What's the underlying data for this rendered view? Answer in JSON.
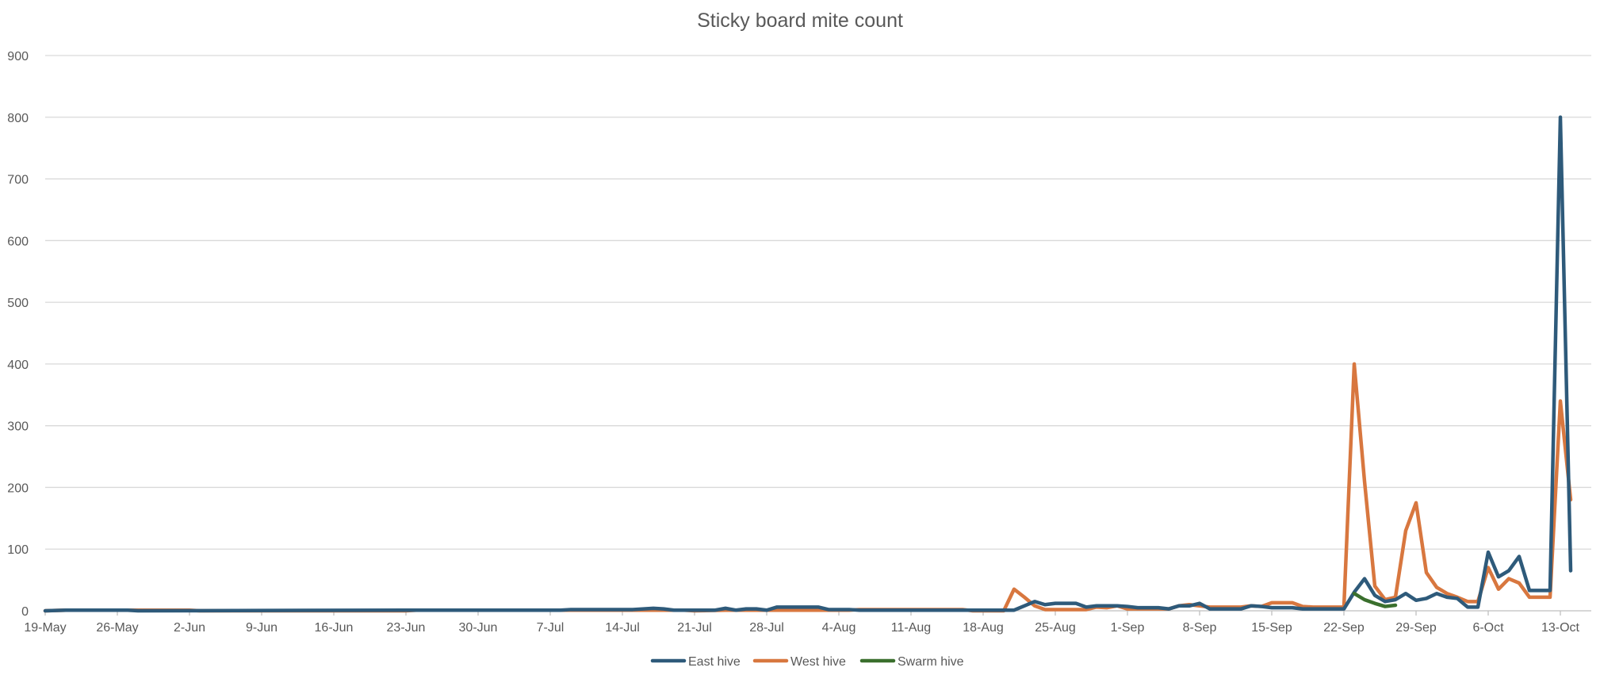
{
  "chart_data": {
    "type": "line",
    "title": "Sticky board mite count",
    "xlabel": "",
    "ylabel": "",
    "ylim": [
      0,
      900
    ],
    "yticks": [
      0,
      100,
      200,
      300,
      400,
      500,
      600,
      700,
      800,
      900
    ],
    "x_range": [
      "2024-05-19",
      "2024-10-16"
    ],
    "x_tick_labels": [
      {
        "date": "2024-05-19",
        "label": "19-May"
      },
      {
        "date": "2024-05-26",
        "label": "26-May"
      },
      {
        "date": "2024-06-02",
        "label": "2-Jun"
      },
      {
        "date": "2024-06-09",
        "label": "9-Jun"
      },
      {
        "date": "2024-06-16",
        "label": "16-Jun"
      },
      {
        "date": "2024-06-23",
        "label": "23-Jun"
      },
      {
        "date": "2024-06-30",
        "label": "30-Jun"
      },
      {
        "date": "2024-07-07",
        "label": "7-Jul"
      },
      {
        "date": "2024-07-14",
        "label": "14-Jul"
      },
      {
        "date": "2024-07-21",
        "label": "21-Jul"
      },
      {
        "date": "2024-07-28",
        "label": "28-Jul"
      },
      {
        "date": "2024-08-04",
        "label": "4-Aug"
      },
      {
        "date": "2024-08-11",
        "label": "11-Aug"
      },
      {
        "date": "2024-08-18",
        "label": "18-Aug"
      },
      {
        "date": "2024-08-25",
        "label": "25-Aug"
      },
      {
        "date": "2024-09-01",
        "label": "1-Sep"
      },
      {
        "date": "2024-09-08",
        "label": "8-Sep"
      },
      {
        "date": "2024-09-15",
        "label": "15-Sep"
      },
      {
        "date": "2024-09-22",
        "label": "22-Sep"
      },
      {
        "date": "2024-09-29",
        "label": "29-Sep"
      },
      {
        "date": "2024-10-06",
        "label": "6-Oct"
      },
      {
        "date": "2024-10-13",
        "label": "13-Oct"
      }
    ],
    "grid": true,
    "legend": "bottom",
    "series": [
      {
        "name": "East hive",
        "color": "#2E5A7A",
        "points": [
          [
            "2024-05-19",
            0
          ],
          [
            "2024-05-21",
            1
          ],
          [
            "2024-05-27",
            1
          ],
          [
            "2024-05-28",
            0
          ],
          [
            "2024-06-24",
            1
          ],
          [
            "2024-07-08",
            1
          ],
          [
            "2024-07-09",
            2
          ],
          [
            "2024-07-15",
            2
          ],
          [
            "2024-07-17",
            4
          ],
          [
            "2024-07-18",
            3
          ],
          [
            "2024-07-19",
            1
          ],
          [
            "2024-07-23",
            1
          ],
          [
            "2024-07-24",
            4
          ],
          [
            "2024-07-25",
            1
          ],
          [
            "2024-07-26",
            3
          ],
          [
            "2024-07-27",
            3
          ],
          [
            "2024-07-28",
            1
          ],
          [
            "2024-07-29",
            6
          ],
          [
            "2024-08-02",
            6
          ],
          [
            "2024-08-03",
            2
          ],
          [
            "2024-08-05",
            2
          ],
          [
            "2024-08-06",
            1
          ],
          [
            "2024-08-20",
            1
          ],
          [
            "2024-08-21",
            1
          ],
          [
            "2024-08-22",
            8
          ],
          [
            "2024-08-23",
            15
          ],
          [
            "2024-08-24",
            10
          ],
          [
            "2024-08-25",
            12
          ],
          [
            "2024-08-27",
            12
          ],
          [
            "2024-08-28",
            6
          ],
          [
            "2024-08-29",
            8
          ],
          [
            "2024-08-31",
            8
          ],
          [
            "2024-09-01",
            7
          ],
          [
            "2024-09-02",
            5
          ],
          [
            "2024-09-04",
            5
          ],
          [
            "2024-09-05",
            3
          ],
          [
            "2024-09-06",
            8
          ],
          [
            "2024-09-07",
            8
          ],
          [
            "2024-09-08",
            12
          ],
          [
            "2024-09-09",
            3
          ],
          [
            "2024-09-12",
            3
          ],
          [
            "2024-09-13",
            8
          ],
          [
            "2024-09-14",
            7
          ],
          [
            "2024-09-15",
            5
          ],
          [
            "2024-09-17",
            5
          ],
          [
            "2024-09-18",
            3
          ],
          [
            "2024-09-22",
            3
          ],
          [
            "2024-09-23",
            30
          ],
          [
            "2024-09-24",
            52
          ],
          [
            "2024-09-25",
            25
          ],
          [
            "2024-09-26",
            15
          ],
          [
            "2024-09-27",
            18
          ],
          [
            "2024-09-28",
            28
          ],
          [
            "2024-09-29",
            17
          ],
          [
            "2024-09-30",
            20
          ],
          [
            "2024-10-01",
            28
          ],
          [
            "2024-10-02",
            22
          ],
          [
            "2024-10-03",
            20
          ],
          [
            "2024-10-04",
            6
          ],
          [
            "2024-10-05",
            6
          ],
          [
            "2024-10-06",
            95
          ],
          [
            "2024-10-07",
            55
          ],
          [
            "2024-10-08",
            65
          ],
          [
            "2024-10-09",
            88
          ],
          [
            "2024-10-10",
            33
          ],
          [
            "2024-10-12",
            33
          ],
          [
            "2024-10-13",
            800
          ],
          [
            "2024-10-14",
            65
          ]
        ]
      },
      {
        "name": "West hive",
        "color": "#D8773F",
        "points": [
          [
            "2024-05-19",
            0
          ],
          [
            "2024-05-21",
            1
          ],
          [
            "2024-06-02",
            1
          ],
          [
            "2024-06-03",
            0
          ],
          [
            "2024-06-23",
            0
          ],
          [
            "2024-06-24",
            1
          ],
          [
            "2024-07-20",
            1
          ],
          [
            "2024-07-21",
            0
          ],
          [
            "2024-07-24",
            1
          ],
          [
            "2024-08-05",
            1
          ],
          [
            "2024-08-06",
            2
          ],
          [
            "2024-08-16",
            2
          ],
          [
            "2024-08-17",
            0
          ],
          [
            "2024-08-20",
            0
          ],
          [
            "2024-08-21",
            35
          ],
          [
            "2024-08-22",
            22
          ],
          [
            "2024-08-23",
            8
          ],
          [
            "2024-08-24",
            2
          ],
          [
            "2024-08-28",
            2
          ],
          [
            "2024-08-29",
            6
          ],
          [
            "2024-08-30",
            5
          ],
          [
            "2024-08-31",
            8
          ],
          [
            "2024-09-01",
            3
          ],
          [
            "2024-09-05",
            3
          ],
          [
            "2024-09-06",
            8
          ],
          [
            "2024-09-07",
            10
          ],
          [
            "2024-09-08",
            8
          ],
          [
            "2024-09-09",
            6
          ],
          [
            "2024-09-12",
            6
          ],
          [
            "2024-09-13",
            8
          ],
          [
            "2024-09-14",
            7
          ],
          [
            "2024-09-15",
            13
          ],
          [
            "2024-09-17",
            13
          ],
          [
            "2024-09-18",
            7
          ],
          [
            "2024-09-19",
            6
          ],
          [
            "2024-09-22",
            6
          ],
          [
            "2024-09-23",
            400
          ],
          [
            "2024-09-24",
            210
          ],
          [
            "2024-09-25",
            40
          ],
          [
            "2024-09-26",
            18
          ],
          [
            "2024-09-27",
            22
          ],
          [
            "2024-09-28",
            130
          ],
          [
            "2024-09-29",
            175
          ],
          [
            "2024-09-30",
            62
          ],
          [
            "2024-10-01",
            38
          ],
          [
            "2024-10-02",
            28
          ],
          [
            "2024-10-03",
            22
          ],
          [
            "2024-10-04",
            15
          ],
          [
            "2024-10-05",
            15
          ],
          [
            "2024-10-06",
            70
          ],
          [
            "2024-10-07",
            35
          ],
          [
            "2024-10-08",
            52
          ],
          [
            "2024-10-09",
            45
          ],
          [
            "2024-10-10",
            22
          ],
          [
            "2024-10-12",
            22
          ],
          [
            "2024-10-13",
            340
          ],
          [
            "2024-10-14",
            180
          ]
        ]
      },
      {
        "name": "Swarm hive",
        "color": "#3A6F2D",
        "points": [
          [
            "2024-09-23",
            28
          ],
          [
            "2024-09-24",
            18
          ],
          [
            "2024-09-25",
            12
          ],
          [
            "2024-09-26",
            7
          ],
          [
            "2024-09-27",
            9
          ]
        ]
      }
    ]
  }
}
